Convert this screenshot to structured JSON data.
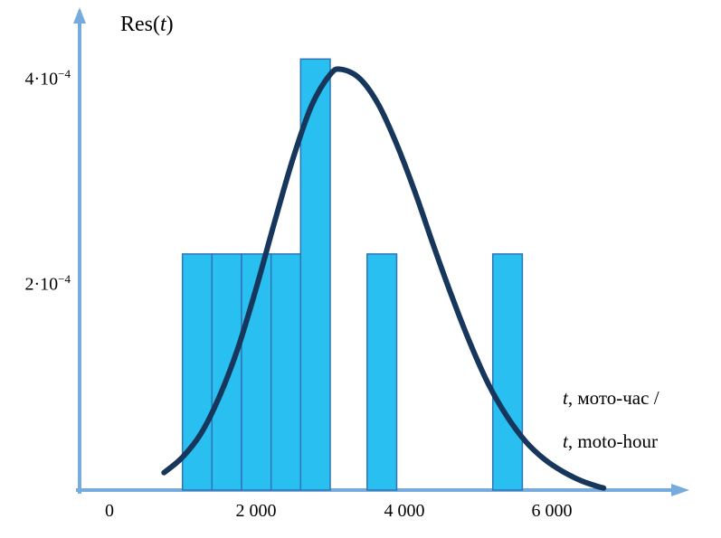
{
  "chart_data": {
    "type": "bar",
    "title": "",
    "ylabel": {
      "prefix": "Res(",
      "var": "t",
      "suffix": ")"
    },
    "xlabel_lines": [
      {
        "var": "t",
        "rest": ", мото-час /"
      },
      {
        "var": "t",
        "rest": ", moto-hour"
      }
    ],
    "x_ticks": [
      {
        "value": 0,
        "label": "0"
      },
      {
        "value": 2000,
        "label": "2 000"
      },
      {
        "value": 4000,
        "label": "4 000"
      },
      {
        "value": 6000,
        "label": "6 000"
      }
    ],
    "y_ticks": [
      {
        "value": 0.0004,
        "base": "4·10",
        "sup": "−4"
      },
      {
        "value": 0.0002,
        "base": "2·10",
        "sup": "−4"
      }
    ],
    "xlim": [
      0,
      6800
    ],
    "ylim": [
      0,
      0.00044
    ],
    "grid": false,
    "legend": "none",
    "bars": [
      {
        "from": 1000,
        "to": 1400,
        "value": 0.00023
      },
      {
        "from": 1400,
        "to": 1800,
        "value": 0.00023
      },
      {
        "from": 1800,
        "to": 2200,
        "value": 0.00023
      },
      {
        "from": 2200,
        "to": 2600,
        "value": 0.00023
      },
      {
        "from": 2600,
        "to": 3000,
        "value": 0.00042
      },
      {
        "from": 3500,
        "to": 3900,
        "value": 0.00023
      },
      {
        "from": 5200,
        "to": 5600,
        "value": 0.00023
      }
    ],
    "curve": {
      "name": "fitted-distribution-curve",
      "points": [
        [
          750,
          1.7e-05
        ],
        [
          1000,
          3.2e-05
        ],
        [
          1250,
          5.5e-05
        ],
        [
          1500,
          9.1e-05
        ],
        [
          1750,
          0.000138
        ],
        [
          2000,
          0.000197
        ],
        [
          2250,
          0.000262
        ],
        [
          2500,
          0.000324
        ],
        [
          2750,
          0.000375
        ],
        [
          3000,
          0.000405
        ],
        [
          3150,
          0.00041
        ],
        [
          3400,
          0.000401
        ],
        [
          3650,
          0.000376
        ],
        [
          3900,
          0.000337
        ],
        [
          4150,
          0.00029
        ],
        [
          4400,
          0.000238
        ],
        [
          4650,
          0.000188
        ],
        [
          4900,
          0.000142
        ],
        [
          5150,
          0.000102
        ],
        [
          5400,
          7.1e-05
        ],
        [
          5650,
          4.7e-05
        ],
        [
          5900,
          3e-05
        ],
        [
          6150,
          1.8e-05
        ],
        [
          6400,
          9e-06
        ],
        [
          6600,
          4e-06
        ],
        [
          6700,
          2e-06
        ]
      ]
    },
    "colors": {
      "bar_fill": "#29bff0",
      "bar_stroke": "#2e75b6",
      "curve": "#16365c",
      "axis": "#77aadd"
    }
  }
}
